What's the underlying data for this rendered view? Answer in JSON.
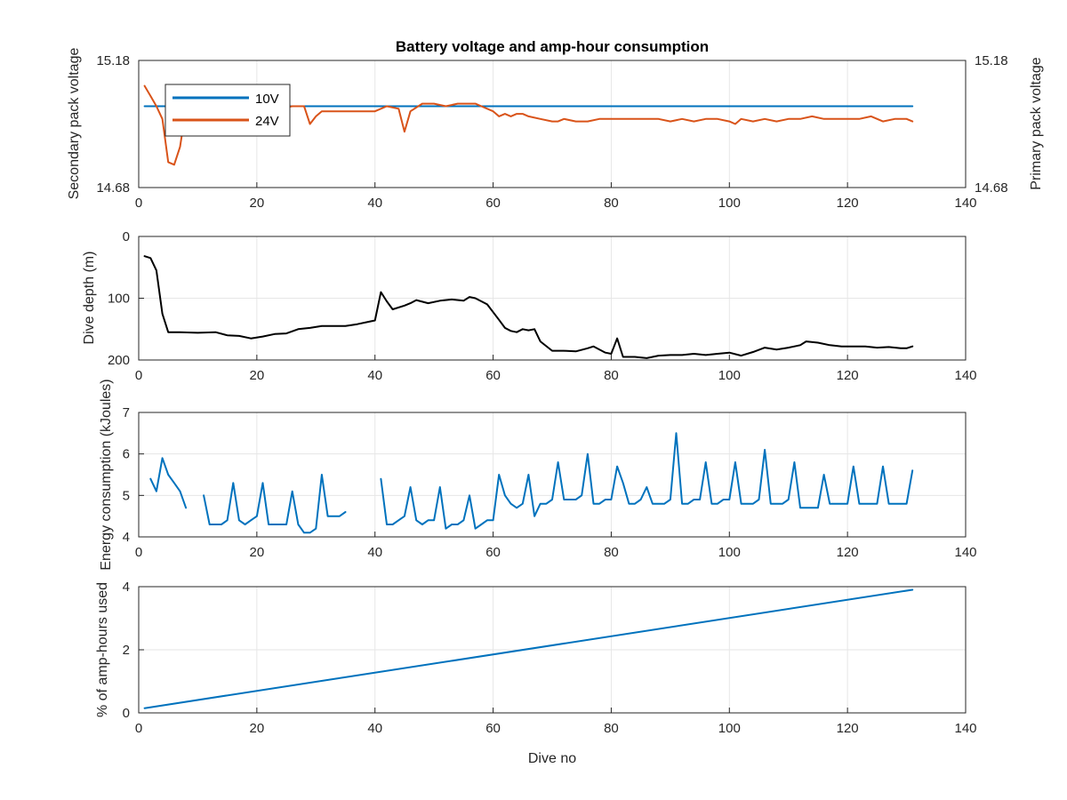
{
  "colors": {
    "axis": "#262626",
    "grid": "#e6e6e6",
    "blue": "#0072bd",
    "orange": "#d95319",
    "leftAxisBlue": "#2f8fc0",
    "rightAxisOrange": "#c8642b",
    "black": "#000000"
  },
  "chart_data": [
    {
      "type": "line",
      "title": "Battery voltage and amp-hour consumption",
      "xlabel": "",
      "ylabel": "Secondary pack voltage",
      "ylabel_right": "Primary pack voltage",
      "xlim": [
        0,
        140
      ],
      "ylim": [
        14.68,
        15.18
      ],
      "ylim_right": [
        14.68,
        15.18
      ],
      "xticks": [
        "0",
        "20",
        "40",
        "60",
        "80",
        "100",
        "120",
        "140"
      ],
      "yticks_left": [
        "14.68",
        "15.18"
      ],
      "yticks_right": [
        "14.68",
        "15.18"
      ],
      "grid": true,
      "legend": {
        "position": "top-left",
        "entries": [
          "10V",
          "24V"
        ]
      },
      "series": [
        {
          "name": "10V",
          "axis": "left",
          "color": "#0072bd",
          "x": [
            1,
            131
          ],
          "y": [
            15.0,
            15.0
          ]
        },
        {
          "name": "24V",
          "axis": "right",
          "color": "#d95319",
          "x": [
            1,
            2,
            3,
            4,
            5,
            6,
            7,
            8,
            9,
            10,
            12,
            14,
            16,
            18,
            20,
            22,
            24,
            26,
            28,
            29,
            30,
            31,
            33,
            35,
            38,
            40,
            42,
            44,
            45,
            46,
            48,
            50,
            52,
            54,
            56,
            57,
            58,
            60,
            61,
            62,
            63,
            64,
            65,
            66,
            68,
            70,
            71,
            72,
            74,
            76,
            78,
            80,
            82,
            84,
            86,
            88,
            90,
            92,
            94,
            96,
            98,
            100,
            101,
            102,
            104,
            106,
            108,
            110,
            112,
            114,
            116,
            118,
            120,
            122,
            124,
            126,
            128,
            130,
            131
          ],
          "y": [
            15.08,
            15.04,
            15.0,
            14.95,
            14.78,
            14.77,
            14.84,
            14.99,
            15.0,
            15.0,
            14.99,
            15.0,
            14.99,
            15.0,
            14.99,
            15.0,
            14.99,
            15.0,
            15.0,
            14.93,
            14.96,
            14.98,
            14.98,
            14.98,
            14.98,
            14.98,
            15.0,
            14.99,
            14.9,
            14.98,
            15.01,
            15.01,
            15.0,
            15.01,
            15.01,
            15.01,
            15.0,
            14.98,
            14.96,
            14.97,
            14.96,
            14.97,
            14.97,
            14.96,
            14.95,
            14.94,
            14.94,
            14.95,
            14.94,
            14.94,
            14.95,
            14.95,
            14.95,
            14.95,
            14.95,
            14.95,
            14.94,
            14.95,
            14.94,
            14.95,
            14.95,
            14.94,
            14.93,
            14.95,
            14.94,
            14.95,
            14.94,
            14.95,
            14.95,
            14.96,
            14.95,
            14.95,
            14.95,
            14.95,
            14.96,
            14.94,
            14.95,
            14.95,
            14.94
          ]
        }
      ]
    },
    {
      "type": "line",
      "xlabel": "",
      "ylabel": "Dive depth (m)",
      "xlim": [
        0,
        140
      ],
      "ylim": [
        0,
        200
      ],
      "y_reversed": true,
      "xticks": [
        "0",
        "20",
        "40",
        "60",
        "80",
        "100",
        "120",
        "140"
      ],
      "yticks": [
        "0",
        "100",
        "200"
      ],
      "grid": true,
      "series": [
        {
          "color": "#000000",
          "x": [
            1,
            2,
            3,
            4,
            5,
            7,
            10,
            13,
            15,
            17,
            19,
            21,
            23,
            25,
            27,
            29,
            31,
            33,
            35,
            37,
            39,
            40,
            41,
            42,
            43,
            45,
            46,
            47,
            49,
            51,
            53,
            55,
            56,
            57,
            59,
            61,
            62,
            63,
            64,
            65,
            66,
            67,
            68,
            70,
            72,
            74,
            76,
            77,
            79,
            80,
            81,
            82,
            84,
            86,
            88,
            90,
            92,
            94,
            96,
            98,
            100,
            102,
            104,
            106,
            108,
            110,
            112,
            113,
            115,
            117,
            119,
            121,
            123,
            125,
            127,
            129,
            130,
            131
          ],
          "y": [
            32,
            35,
            55,
            125,
            155,
            155,
            156,
            155,
            160,
            161,
            165,
            162,
            158,
            157,
            150,
            148,
            145,
            145,
            145,
            142,
            138,
            136,
            90,
            105,
            118,
            112,
            108,
            103,
            108,
            104,
            102,
            104,
            98,
            100,
            110,
            135,
            148,
            153,
            155,
            150,
            152,
            150,
            170,
            185,
            185,
            186,
            181,
            178,
            188,
            190,
            165,
            195,
            195,
            197,
            193,
            192,
            192,
            190,
            192,
            190,
            188,
            193,
            187,
            180,
            183,
            180,
            176,
            170,
            172,
            176,
            178,
            178,
            178,
            180,
            179,
            181,
            181,
            178
          ]
        }
      ]
    },
    {
      "type": "line",
      "xlabel": "",
      "ylabel": "Energy consumption (kJoules)",
      "xlim": [
        0,
        140
      ],
      "ylim": [
        4,
        7
      ],
      "xticks": [
        "0",
        "20",
        "40",
        "60",
        "80",
        "100",
        "120",
        "140"
      ],
      "yticks": [
        "4",
        "5",
        "6",
        "7"
      ],
      "grid": true,
      "series": [
        {
          "color": "#0072bd",
          "segments": [
            {
              "x": [
                2,
                3,
                4,
                5,
                6,
                7,
                8
              ],
              "y": [
                5.4,
                5.1,
                5.9,
                5.5,
                5.3,
                5.1,
                4.7
              ]
            },
            {
              "x": [
                11,
                12,
                13,
                14,
                15,
                16,
                17,
                18,
                19,
                20,
                21,
                22,
                23,
                24,
                25,
                26,
                27,
                28,
                29,
                30,
                31,
                32,
                33,
                34,
                35
              ],
              "y": [
                5.0,
                4.3,
                4.3,
                4.3,
                4.4,
                5.3,
                4.4,
                4.3,
                4.4,
                4.5,
                5.3,
                4.3,
                4.3,
                4.3,
                4.3,
                5.1,
                4.3,
                4.1,
                4.1,
                4.2,
                5.5,
                4.5,
                4.5,
                4.5,
                4.6
              ]
            },
            {
              "x": [
                41,
                42,
                43,
                44,
                45,
                46,
                47,
                48,
                49,
                50,
                51,
                52,
                53,
                54,
                55,
                56,
                57,
                58,
                59,
                60,
                61,
                62,
                63,
                64,
                65,
                66,
                67,
                68,
                69,
                70,
                71,
                72,
                73,
                74,
                75,
                76,
                77,
                78,
                79,
                80,
                81,
                82,
                83,
                84,
                85,
                86,
                87,
                88,
                89,
                90,
                91,
                92,
                93,
                94,
                95,
                96,
                97,
                98,
                99,
                100,
                101,
                102,
                103,
                104,
                105,
                106,
                107,
                108,
                109,
                110,
                111,
                112,
                113,
                114,
                115,
                116,
                117,
                118,
                119,
                120,
                121,
                122,
                123,
                124,
                125,
                126,
                127,
                128,
                129,
                130,
                131
              ],
              "y": [
                5.4,
                4.3,
                4.3,
                4.4,
                4.5,
                5.2,
                4.4,
                4.3,
                4.4,
                4.4,
                5.2,
                4.2,
                4.3,
                4.3,
                4.4,
                5.0,
                4.2,
                4.3,
                4.4,
                4.4,
                5.5,
                5.0,
                4.8,
                4.7,
                4.8,
                5.5,
                4.5,
                4.8,
                4.8,
                4.9,
                5.8,
                4.9,
                4.9,
                4.9,
                5.0,
                6.0,
                4.8,
                4.8,
                4.9,
                4.9,
                5.7,
                5.3,
                4.8,
                4.8,
                4.9,
                5.2,
                4.8,
                4.8,
                4.8,
                4.9,
                6.5,
                4.8,
                4.8,
                4.9,
                4.9,
                5.8,
                4.8,
                4.8,
                4.9,
                4.9,
                5.8,
                4.8,
                4.8,
                4.8,
                4.9,
                6.1,
                4.8,
                4.8,
                4.8,
                4.9,
                5.8,
                4.7,
                4.7,
                4.7,
                4.7,
                5.5,
                4.8,
                4.8,
                4.8,
                4.8,
                5.7,
                4.8,
                4.8,
                4.8,
                4.8,
                5.7,
                4.8,
                4.8,
                4.8,
                4.8,
                5.6
              ]
            }
          ]
        }
      ]
    },
    {
      "type": "line",
      "xlabel": "Dive no",
      "ylabel": "% of amp-hours used",
      "xlim": [
        0,
        140
      ],
      "ylim": [
        0,
        4
      ],
      "xticks": [
        "0",
        "20",
        "40",
        "60",
        "80",
        "100",
        "120",
        "140"
      ],
      "yticks": [
        "0",
        "2",
        "4"
      ],
      "grid": true,
      "series": [
        {
          "color": "#0072bd",
          "x": [
            1,
            131
          ],
          "y": [
            0.15,
            3.9
          ]
        }
      ]
    }
  ]
}
